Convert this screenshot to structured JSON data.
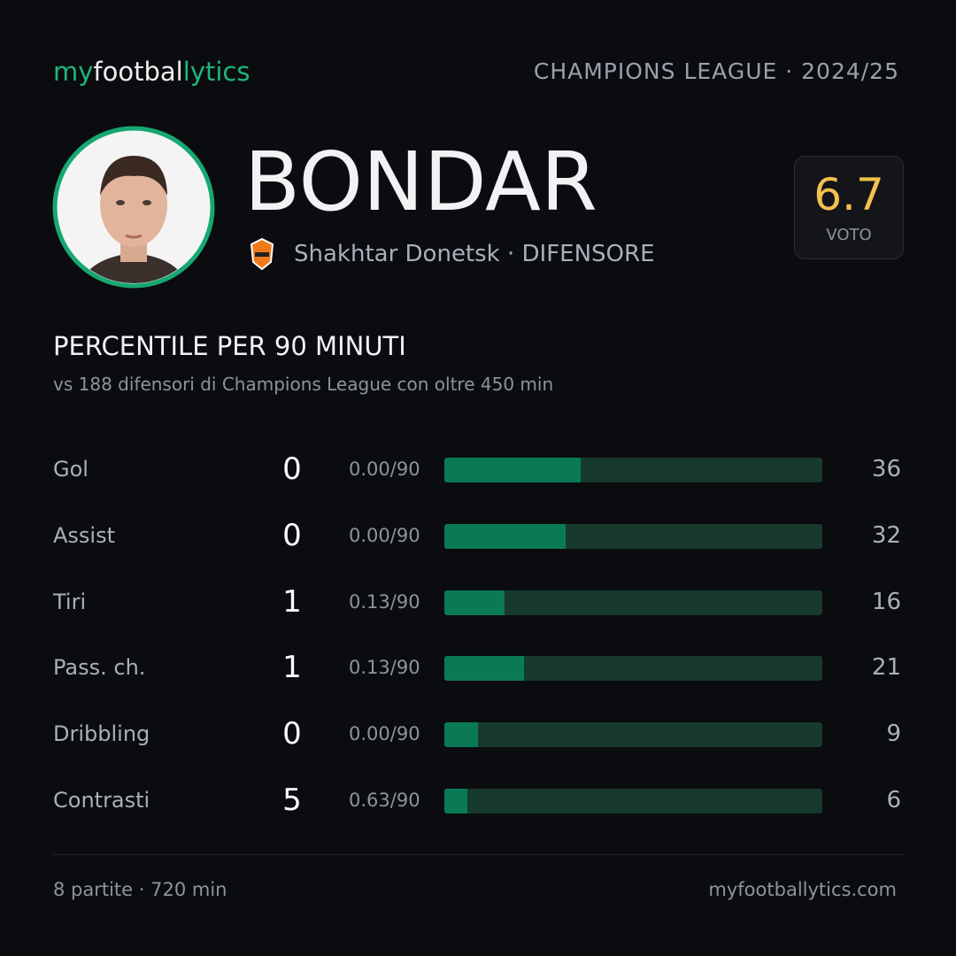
{
  "header": {
    "brand": [
      "my",
      "footbal",
      "lytics"
    ],
    "competition": "CHAMPIONS LEAGUE · 2024/25"
  },
  "player": {
    "name": "BONDAR",
    "team_line": "Shakhtar Donetsk · DIFENSORE",
    "rating": 6.7,
    "rating_label": "VOTO"
  },
  "section": {
    "title": "PERCENTILE PER 90 MINUTI",
    "subtitle": "vs 188 difensori di Champions League con oltre 450 min"
  },
  "stats": {
    "xlim": [
      0,
      100
    ],
    "rows": [
      {
        "label": "Gol",
        "total": 0,
        "per90": "0.00/90",
        "percentile": 36
      },
      {
        "label": "Assist",
        "total": 0,
        "per90": "0.00/90",
        "percentile": 32
      },
      {
        "label": "Tiri",
        "total": 1,
        "per90": "0.13/90",
        "percentile": 16
      },
      {
        "label": "Pass. ch.",
        "total": 1,
        "per90": "0.13/90",
        "percentile": 21
      },
      {
        "label": "Dribbling",
        "total": 0,
        "per90": "0.00/90",
        "percentile": 9
      },
      {
        "label": "Contrasti",
        "total": 5,
        "per90": "0.63/90",
        "percentile": 6
      }
    ]
  },
  "footer": {
    "left": "8 partite · 720 min",
    "right": "myfootballytics.com"
  }
}
